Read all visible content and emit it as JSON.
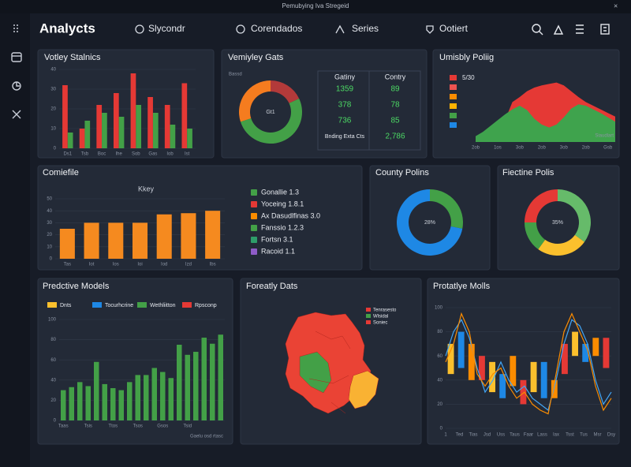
{
  "window_title": "Pemubying Iva Stregeid",
  "header": {
    "brand": "Analycts",
    "nav": [
      "Slycondr",
      "Corendados",
      "Series",
      "Ootiert"
    ]
  },
  "panels": [
    {
      "title": "Votley Stalnics",
      "chart": {
        "type": "bar",
        "categories": [
          "Ds1",
          "Tsb",
          "Boc",
          "Ihe",
          "Sob",
          "Gas",
          "Iob",
          "Ist"
        ],
        "series": [
          {
            "color": "#e53935",
            "values": [
              32,
              10,
              22,
              28,
              38,
              26,
              22,
              33
            ]
          },
          {
            "color": "#43a047",
            "values": [
              8,
              14,
              18,
              16,
              22,
              18,
              12,
              10
            ]
          }
        ],
        "ylim": [
          0,
          40
        ],
        "yticks": [
          0,
          10,
          20,
          30,
          40
        ],
        "grid": true
      }
    },
    {
      "title": "Vemiyley Gats",
      "note": "Bassd",
      "chart": {
        "type": "donut",
        "center_label": "Gt1",
        "colors": [
          "#b23a3a",
          "#43a047",
          "#f57c1f"
        ],
        "values": [
          18,
          52,
          30
        ]
      },
      "table": {
        "headers": [
          "Gatiny",
          "Contry"
        ],
        "rows": [
          [
            "1359",
            "89"
          ],
          [
            "378",
            "78"
          ],
          [
            "736",
            "85"
          ],
          [
            "Bnding Exta Cts",
            "2,786"
          ]
        ]
      }
    },
    {
      "title": "Umisbly Poliig",
      "chart": {
        "type": "area",
        "label": "5/30",
        "note": "Siaudlart",
        "legend_colors": [
          "#e53935",
          "#ef5350",
          "#fb8c00",
          "#ffb300",
          "#43a047",
          "#1e88e5"
        ],
        "categories": [
          "2ob",
          null,
          null,
          "1os",
          null,
          null,
          "3ob",
          null,
          null,
          "2ob",
          null,
          null,
          "3ob",
          null,
          null,
          "2ob",
          null,
          null,
          "Gsb",
          null
        ],
        "series": [
          {
            "color": "#e53935",
            "values": [
              5,
              8,
              10,
              12,
              30,
              55,
              62,
              70,
              75,
              78,
              80,
              82,
              78,
              70,
              62,
              55,
              50,
              45,
              40,
              35
            ]
          },
          {
            "color": "#3fa34d",
            "values": [
              8,
              14,
              22,
              30,
              38,
              45,
              50,
              44,
              32,
              24,
              20,
              24,
              34,
              46,
              52,
              50,
              45,
              40,
              34,
              28
            ]
          }
        ],
        "ylim": [
          0,
          100
        ],
        "grid": true
      }
    },
    {
      "title": "Comiefile",
      "subtitle": "Kkey",
      "chart": {
        "type": "bar",
        "categories": [
          "Tas",
          "Iot",
          "Ios",
          "Ioi",
          "Iod",
          "Izd",
          "Ibs"
        ],
        "series": [
          {
            "color": "#f58a1f",
            "values": [
              25,
              30,
              30,
              30,
              37,
              38,
              40
            ]
          }
        ],
        "ylim": [
          0,
          50
        ],
        "yticks": [
          0,
          10,
          20,
          30,
          40,
          50
        ],
        "grid": true
      },
      "legend": [
        {
          "label": "Gonallie 1.3",
          "color": "#43a047"
        },
        {
          "label": "Yoceing 1.8.1",
          "color": "#e53935"
        },
        {
          "label": "Ax Dasudlfinas 3.0",
          "color": "#fb8c00"
        },
        {
          "label": "Fanssio 1.2.3",
          "color": "#43a047"
        },
        {
          "label": "Fortsn 3.1",
          "color": "#2e9d6a"
        },
        {
          "label": "Racoid 1.1",
          "color": "#8e5cc8"
        }
      ]
    },
    {
      "title": "County Polins",
      "chart": {
        "type": "donut",
        "center_label": "28%",
        "colors": [
          "#43a047",
          "#1e88e5"
        ],
        "values": [
          28,
          72
        ]
      }
    },
    {
      "title": "Fiectine Polis",
      "chart": {
        "type": "donut",
        "center_label": "35%",
        "colors": [
          "#66bb6a",
          "#fbc02d",
          "#43a047",
          "#e53935"
        ],
        "values": [
          35,
          25,
          15,
          25
        ]
      }
    },
    {
      "title": "Predctive Models",
      "note": "Gaelu osd rtasc",
      "legend": [
        {
          "label": "Dnts",
          "color": "#fbc02d"
        },
        {
          "label": "Tocurhcrine",
          "color": "#1e88e5"
        },
        {
          "label": "Wethliitton",
          "color": "#43a047"
        },
        {
          "label": "Rpsconp",
          "color": "#e53935"
        }
      ],
      "chart": {
        "type": "bar",
        "categories": [
          "Taas",
          null,
          null,
          "Tsis",
          null,
          null,
          "Ttos",
          null,
          null,
          "Tsos",
          null,
          null,
          "Gsos",
          null,
          null,
          "Tsid",
          null,
          null,
          null,
          null
        ],
        "series": [
          {
            "color": "#43a047",
            "values": [
              30,
              33,
              38,
              34,
              58,
              36,
              32,
              30,
              38,
              45,
              45,
              52,
              48,
              42,
              75,
              65,
              68,
              82,
              76,
              85
            ]
          }
        ],
        "ylim": [
          0,
          100
        ],
        "yticks": [
          0,
          20,
          40,
          60,
          80,
          100
        ],
        "grid": true
      }
    },
    {
      "title": "Foreatly Dats",
      "legend": [
        {
          "label": "Tenrasesto",
          "color": "#e53935"
        },
        {
          "label": "Wlsidal",
          "color": "#43a047"
        },
        {
          "label": "Soniec",
          "color": "#e53935"
        }
      ]
    },
    {
      "title": "Protatlye Molls",
      "chart": {
        "type": "candle",
        "x_labels": [
          "1",
          "Ted",
          "Tias",
          "Jsd",
          "Uss",
          "Taus",
          "Faar",
          "Lass",
          "Iax",
          "Tsst",
          "Tus",
          "Msr",
          "Dsy"
        ],
        "candles": {
          "colors": [
            "#fbc02d",
            "#1e88e5",
            "#fb8c00",
            "#e53935"
          ],
          "open": [
            45,
            50,
            70,
            40,
            30,
            45,
            35,
            40,
            30,
            25,
            25,
            45,
            60,
            55,
            60,
            50
          ],
          "close": [
            70,
            80,
            40,
            60,
            55,
            25,
            60,
            20,
            55,
            55,
            40,
            70,
            80,
            70,
            75,
            75
          ]
        },
        "lines": [
          {
            "color": "#42a5f5",
            "values": [
              60,
              80,
              90,
              75,
              50,
              30,
              40,
              55,
              40,
              30,
              35,
              25,
              20,
              15,
              40,
              70,
              90,
              85,
              70,
              40,
              20,
              30
            ]
          },
          {
            "color": "#fb8c00",
            "values": [
              55,
              70,
              95,
              80,
              45,
              35,
              45,
              50,
              35,
              25,
              30,
              20,
              15,
              12,
              45,
              80,
              95,
              80,
              65,
              35,
              15,
              25
            ]
          }
        ],
        "ylim": [
          0,
          100
        ],
        "yticks": [
          0,
          20,
          40,
          60,
          80,
          100
        ],
        "grid": true
      }
    }
  ]
}
